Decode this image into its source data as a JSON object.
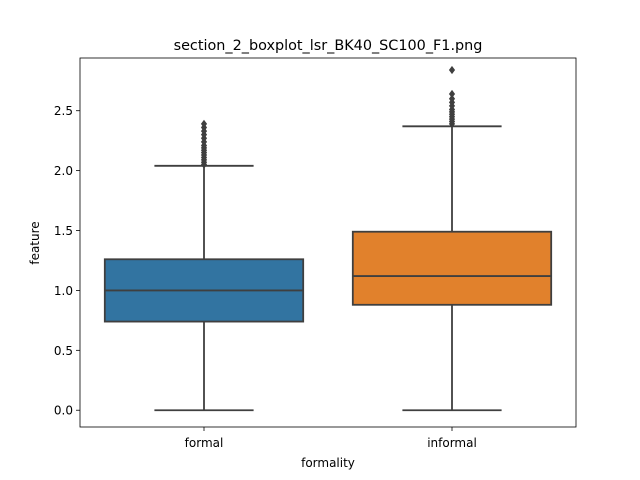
{
  "chart_data": {
    "type": "box",
    "title": "section_2_boxplot_lsr_BK40_SC100_F1.png",
    "xlabel": "formality",
    "ylabel": "feature",
    "ylim": [
      -0.14,
      2.94
    ],
    "yticks": [
      0.0,
      0.5,
      1.0,
      1.5,
      2.0,
      2.5
    ],
    "ytick_labels": [
      "0.0",
      "0.5",
      "1.0",
      "1.5",
      "2.0",
      "2.5"
    ],
    "grid": false,
    "legend": "none",
    "categories": [
      "formal",
      "informal"
    ],
    "boxes": [
      {
        "name": "formal",
        "color": "#3274a1",
        "min": 0.0,
        "q1": 0.74,
        "median": 1.0,
        "q3": 1.26,
        "max": 2.04,
        "outliers": [
          2.05,
          2.07,
          2.09,
          2.11,
          2.13,
          2.15,
          2.17,
          2.19,
          2.21,
          2.24,
          2.27,
          2.3,
          2.33,
          2.36,
          2.39
        ]
      },
      {
        "name": "informal",
        "color": "#e1812c",
        "min": 0.0,
        "q1": 0.88,
        "median": 1.12,
        "q3": 1.49,
        "max": 2.37,
        "outliers": [
          2.39,
          2.41,
          2.43,
          2.45,
          2.47,
          2.49,
          2.51,
          2.54,
          2.57,
          2.6,
          2.64,
          2.84
        ]
      }
    ]
  }
}
